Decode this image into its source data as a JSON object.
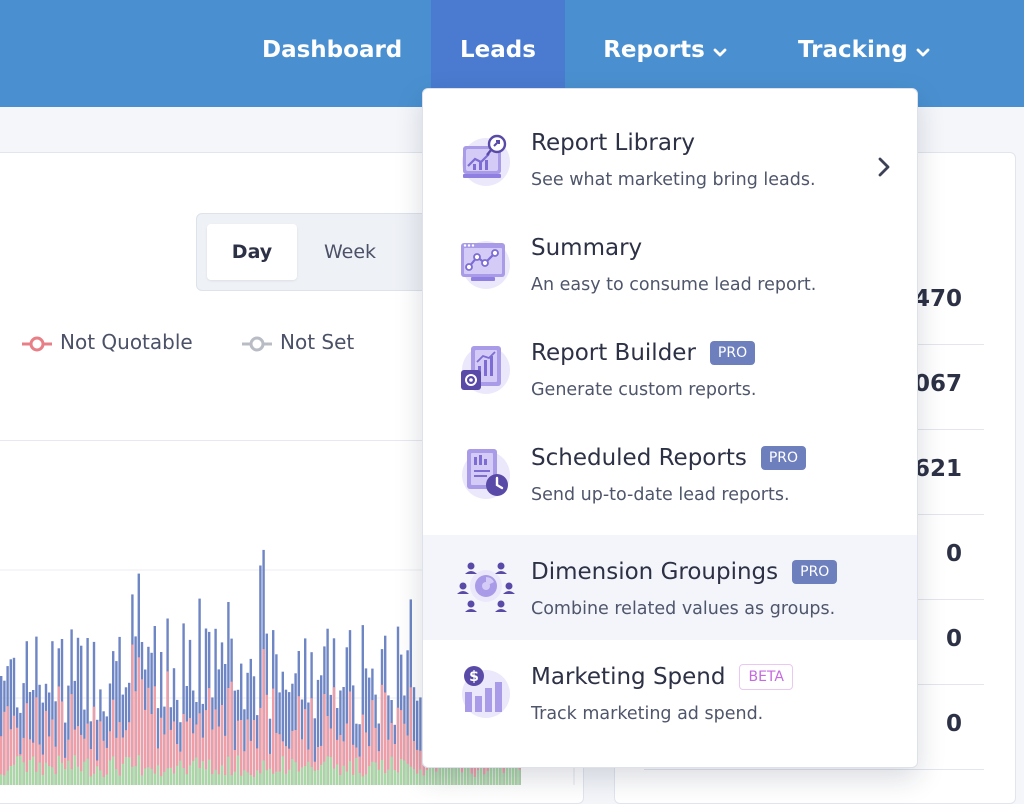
{
  "nav": {
    "items": [
      {
        "label": "Dashboard",
        "has_chevron": false,
        "active": false
      },
      {
        "label": "Leads",
        "has_chevron": false,
        "active": true
      },
      {
        "label": "Reports",
        "has_chevron": true,
        "active": false
      },
      {
        "label": "Tracking",
        "has_chevron": true,
        "active": false
      }
    ]
  },
  "toggle": {
    "day": "Day",
    "week": "Week",
    "selected": "Day"
  },
  "legend": [
    {
      "label": "Not Quotable",
      "color": "#e87f87"
    },
    {
      "label": "Not Set",
      "color": "#b9bcc4"
    }
  ],
  "stats": [
    "470",
    "067",
    "621",
    "0",
    "0",
    "0"
  ],
  "menu": {
    "items": [
      {
        "title": "Report Library",
        "desc": "See what marketing bring leads.",
        "badge": "",
        "icon": "report-library-icon",
        "submenu": true
      },
      {
        "title": "Summary",
        "desc": "An easy to consume lead report.",
        "badge": "",
        "icon": "summary-icon"
      },
      {
        "title": "Report Builder",
        "desc": "Generate custom reports.",
        "badge": "PRO",
        "icon": "report-builder-icon"
      },
      {
        "title": "Scheduled Reports",
        "desc": "Send up-to-date lead reports.",
        "badge": "PRO",
        "icon": "scheduled-reports-icon"
      },
      {
        "title": "Dimension Groupings",
        "desc": "Combine related values as groups.",
        "badge": "PRO",
        "icon": "dimension-groupings-icon",
        "highlighted": true
      },
      {
        "title": "Marketing Spend",
        "desc": "Track marketing ad spend.",
        "badge": "BETA",
        "icon": "marketing-spend-icon"
      }
    ]
  },
  "colors": {
    "nav_bg": "#4a90d0",
    "nav_active": "#4a7bd0",
    "accent": "#8f7fe0",
    "bar_blue": "#6f86c5",
    "bar_red": "#ef9ea5",
    "bar_green": "#a8d8a6",
    "pro_badge": "#6e7fbd",
    "beta_badge": "#c46be0"
  }
}
